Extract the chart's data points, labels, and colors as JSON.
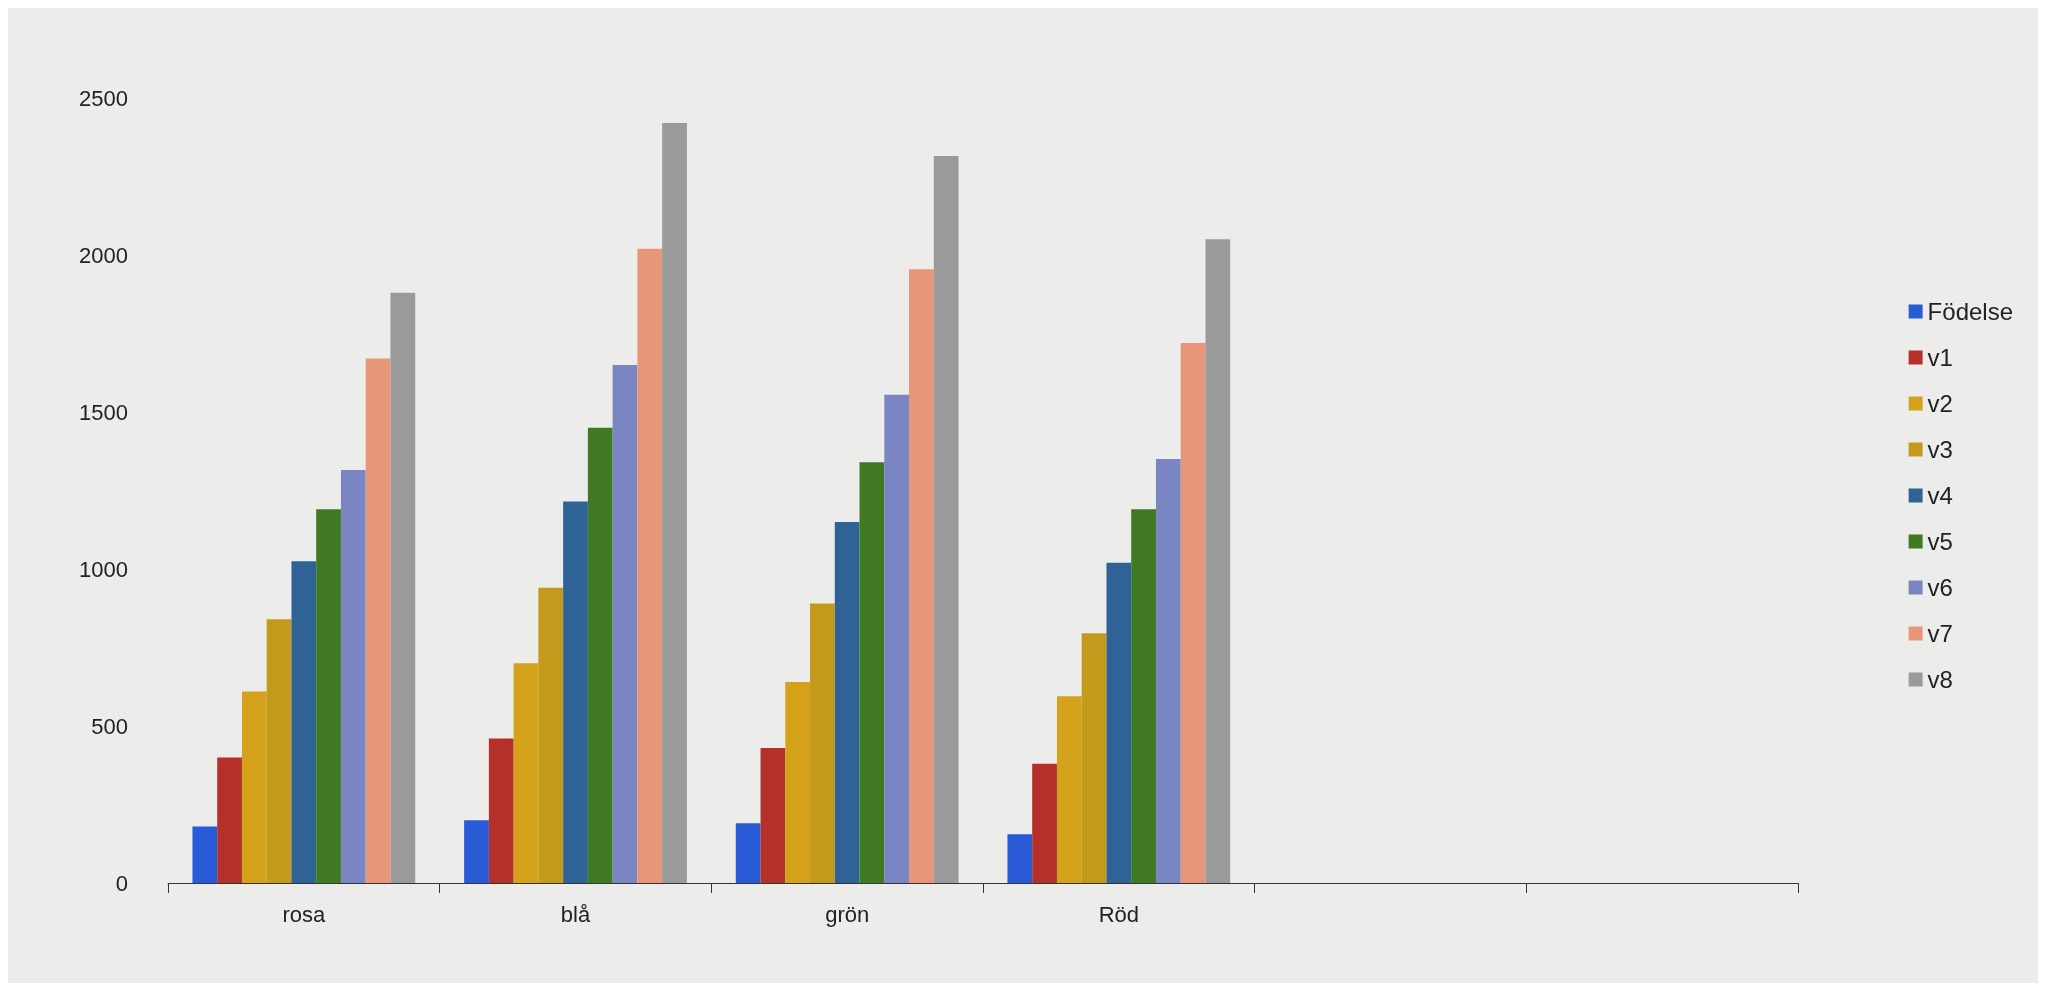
{
  "chart_data": {
    "type": "bar",
    "categories": [
      "rosa",
      "blå",
      "grön",
      "Röd",
      null,
      null
    ],
    "series": [
      {
        "name": "Födelse",
        "color": "#2a5bd7",
        "values": [
          180,
          200,
          190,
          155,
          null,
          null
        ]
      },
      {
        "name": "v1",
        "color": "#b5302a",
        "values": [
          400,
          460,
          430,
          380,
          null,
          null
        ]
      },
      {
        "name": "v2",
        "color": "#d4a21a",
        "values": [
          610,
          700,
          640,
          595,
          null,
          null
        ]
      },
      {
        "name": "v3",
        "color": "#c49a1c",
        "values": [
          840,
          940,
          890,
          795,
          null,
          null
        ]
      },
      {
        "name": "v4",
        "color": "#2f6396",
        "values": [
          1025,
          1215,
          1150,
          1020,
          null,
          null
        ]
      },
      {
        "name": "v5",
        "color": "#3f7a23",
        "values": [
          1190,
          1450,
          1340,
          1190,
          null,
          null
        ]
      },
      {
        "name": "v6",
        "color": "#7a86c4",
        "values": [
          1315,
          1650,
          1555,
          1350,
          null,
          null
        ]
      },
      {
        "name": "v7",
        "color": "#e8967a",
        "values": [
          1670,
          2020,
          1955,
          1720,
          null,
          null
        ]
      },
      {
        "name": "v8",
        "color": "#9a9a9a",
        "values": [
          1880,
          2420,
          2315,
          2050,
          null,
          null
        ]
      }
    ],
    "ylim": [
      0,
      2500
    ],
    "yticks": [
      0,
      500,
      1000,
      1500,
      2000,
      2500
    ],
    "grid": false,
    "legend": "right"
  }
}
